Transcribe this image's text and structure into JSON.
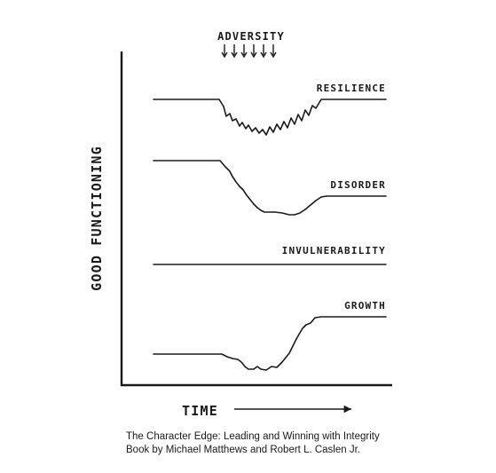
{
  "adversity_label": "ADVERSITY",
  "y_axis_label": "GOOD FUNCTIONING",
  "x_axis_label": "TIME",
  "curves": {
    "resilience": "RESILIENCE",
    "disorder": "DISORDER",
    "invulnerability": "INVULNERABILITY",
    "growth": "GROWTH"
  },
  "caption": {
    "line1": "The Character Edge: Leading and Winning with Integrity",
    "line2": "Book by Michael Matthews and Robert L. Caslen Jr."
  }
}
